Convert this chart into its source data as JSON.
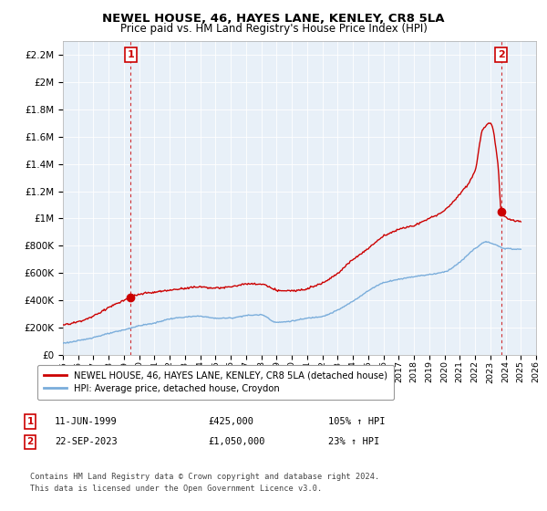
{
  "title": "NEWEL HOUSE, 46, HAYES LANE, KENLEY, CR8 5LA",
  "subtitle": "Price paid vs. HM Land Registry's House Price Index (HPI)",
  "xlim": [
    1995,
    2026
  ],
  "ylim": [
    0,
    2300000
  ],
  "yticks": [
    0,
    200000,
    400000,
    600000,
    800000,
    1000000,
    1200000,
    1400000,
    1600000,
    1800000,
    2000000,
    2200000
  ],
  "ytick_labels": [
    "£0",
    "£200K",
    "£400K",
    "£600K",
    "£800K",
    "£1M",
    "£1.2M",
    "£1.4M",
    "£1.6M",
    "£1.8M",
    "£2M",
    "£2.2M"
  ],
  "xticks": [
    1995,
    1996,
    1997,
    1998,
    1999,
    2000,
    2001,
    2002,
    2003,
    2004,
    2005,
    2006,
    2007,
    2008,
    2009,
    2010,
    2011,
    2012,
    2013,
    2014,
    2015,
    2016,
    2017,
    2018,
    2019,
    2020,
    2021,
    2022,
    2023,
    2024,
    2025,
    2026
  ],
  "house_color": "#cc0000",
  "hpi_color": "#7aaddb",
  "point1_x": 1999.44,
  "point1_y": 425000,
  "point2_x": 2023.72,
  "point2_y": 1050000,
  "legend_house": "NEWEL HOUSE, 46, HAYES LANE, KENLEY, CR8 5LA (detached house)",
  "legend_hpi": "HPI: Average price, detached house, Croydon",
  "annotation1_label": "1",
  "annotation1_date": "11-JUN-1999",
  "annotation1_price": "£425,000",
  "annotation1_hpi": "105% ↑ HPI",
  "annotation2_label": "2",
  "annotation2_date": "22-SEP-2023",
  "annotation2_price": "£1,050,000",
  "annotation2_hpi": "23% ↑ HPI",
  "footnote": "Contains HM Land Registry data © Crown copyright and database right 2024.\nThis data is licensed under the Open Government Licence v3.0.",
  "background_color": "#ffffff",
  "plot_bg_color": "#e8f0f8",
  "grid_color": "#ffffff"
}
